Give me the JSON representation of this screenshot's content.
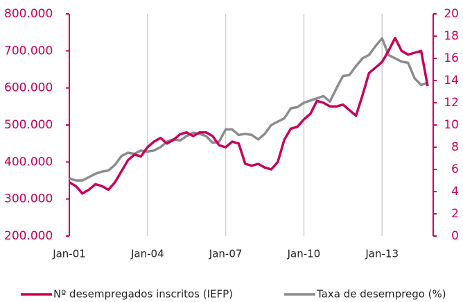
{
  "chart_data": {
    "type": "line",
    "categories": [
      "Jan-01",
      null,
      null,
      null,
      null,
      null,
      null,
      null,
      null,
      null,
      null,
      null,
      "Jan-04",
      null,
      null,
      null,
      null,
      null,
      null,
      null,
      null,
      null,
      null,
      null,
      "Jan-07",
      null,
      null,
      null,
      null,
      null,
      null,
      null,
      null,
      null,
      null,
      null,
      "Jan-10",
      null,
      null,
      null,
      null,
      null,
      null,
      null,
      null,
      null,
      null,
      null,
      "Jan-13",
      null,
      null,
      null,
      null,
      null,
      null,
      null
    ],
    "series": [
      {
        "name": "Nº desempregados inscritos (IEFP)",
        "color": "#c8005a",
        "axis": "y",
        "values": [
          345000,
          335000,
          315000,
          325000,
          340000,
          335000,
          325000,
          345000,
          375000,
          405000,
          420000,
          415000,
          440000,
          455000,
          465000,
          450000,
          460000,
          475000,
          480000,
          470000,
          480000,
          480000,
          470000,
          445000,
          440000,
          455000,
          450000,
          395000,
          390000,
          395000,
          385000,
          380000,
          400000,
          460000,
          490000,
          495000,
          515000,
          530000,
          565000,
          560000,
          550000,
          550000,
          555000,
          540000,
          525000,
          580000,
          640000,
          655000,
          670000,
          700000,
          735000,
          700000,
          690000,
          695000,
          700000,
          605000
        ]
      },
      {
        "name": "Taxa de desemprego (%)",
        "color": "#8c8c8c",
        "axis": "y2",
        "values": [
          5.2,
          5.0,
          5.0,
          5.3,
          5.6,
          5.8,
          5.9,
          6.4,
          7.2,
          7.5,
          7.4,
          7.7,
          7.6,
          7.7,
          8.0,
          8.5,
          8.7,
          8.6,
          9.0,
          9.3,
          9.2,
          9.0,
          8.4,
          8.5,
          9.6,
          9.6,
          9.1,
          9.2,
          9.1,
          8.7,
          9.2,
          10.0,
          10.3,
          10.6,
          11.5,
          11.6,
          12.0,
          12.2,
          12.4,
          12.6,
          12.1,
          13.3,
          14.4,
          14.5,
          15.3,
          16.0,
          16.3,
          17.1,
          17.8,
          16.3,
          16.0,
          15.7,
          15.6,
          14.2,
          13.6,
          13.8
        ]
      }
    ],
    "ylim": [
      200000,
      800000
    ],
    "yticks": [
      {
        "value": 200000,
        "label": "200.000"
      },
      {
        "value": 300000,
        "label": "300.000"
      },
      {
        "value": 400000,
        "label": "400.000"
      },
      {
        "value": 500000,
        "label": "500.000"
      },
      {
        "value": 600000,
        "label": "600.000"
      },
      {
        "value": 700000,
        "label": "700.000"
      },
      {
        "value": 800000,
        "label": "800.000"
      }
    ],
    "y2lim": [
      0,
      20
    ],
    "y2ticks": [
      0,
      2,
      4,
      6,
      8,
      10,
      12,
      14,
      16,
      18,
      20
    ],
    "legend": "bottom"
  }
}
